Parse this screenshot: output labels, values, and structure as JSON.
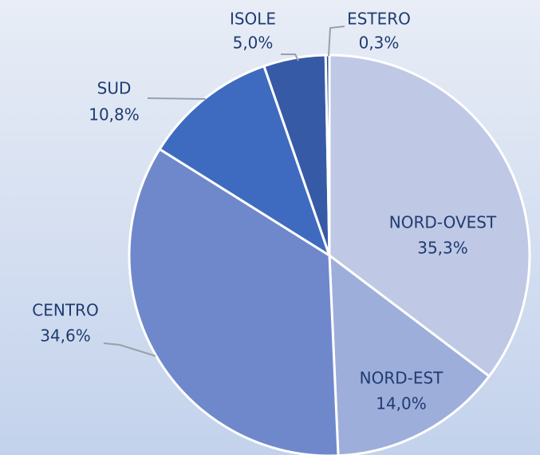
{
  "chart_data": {
    "type": "pie",
    "categories": [
      "NORD-OVEST",
      "NORD-EST",
      "CENTRO",
      "SUD",
      "ISOLE",
      "ESTERO"
    ],
    "values": [
      35.3,
      14.0,
      34.6,
      10.8,
      5.0,
      0.3
    ],
    "value_labels": [
      "35,3%",
      "14,0%",
      "34,6%",
      "10,8%",
      "5,0%",
      "0,3%"
    ],
    "colors": [
      "#bfc8e4",
      "#9eaedb",
      "#6f88cb",
      "#3e6bbf",
      "#375aa6",
      "#2f4f94"
    ]
  }
}
